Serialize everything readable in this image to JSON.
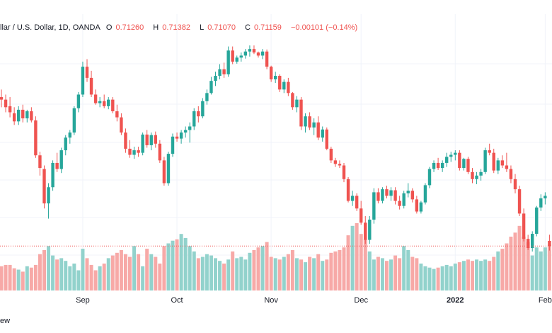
{
  "legend": {
    "symbol": "llar / U.S. Dollar, 1D, OANDA",
    "open_key": "O",
    "open_val": "0.71260",
    "high_key": "H",
    "high_val": "0.71382",
    "low_key": "L",
    "low_val": "0.71070",
    "close_key": "C",
    "close_val": "0.71159",
    "change_val": "−0.00101 (−0.14%)"
  },
  "footer": {
    "text": "ew"
  },
  "colors": {
    "up": "#26a69a",
    "down": "#ef5350",
    "up_volume": "#92d2cc",
    "down_volume": "#f7a9a7",
    "grid": "#f0f3fa",
    "price_line": "#ef5350"
  },
  "chart_data": {
    "type": "candlestick",
    "title": "llar / U.S. Dollar, 1D, OANDA",
    "last_close": 0.71159,
    "price_range": [
      0.7098,
      0.7515
    ],
    "x_tick_labels": [
      {
        "label": "Sep",
        "index": 19,
        "bold": false
      },
      {
        "label": "Oct",
        "index": 41,
        "bold": false
      },
      {
        "label": "Nov",
        "index": 63,
        "bold": false
      },
      {
        "label": "Dec",
        "index": 84,
        "bold": false
      },
      {
        "label": "2022",
        "index": 106,
        "bold": true
      },
      {
        "label": "Feb",
        "index": 127,
        "bold": false
      }
    ],
    "candles": [
      [
        0.741,
        0.7425,
        0.739,
        0.7405
      ],
      [
        0.7405,
        0.7415,
        0.738,
        0.739
      ],
      [
        0.7392,
        0.741,
        0.737,
        0.738
      ],
      [
        0.7378,
        0.739,
        0.7355,
        0.7362
      ],
      [
        0.7362,
        0.7392,
        0.7355,
        0.7385
      ],
      [
        0.7385,
        0.7395,
        0.736,
        0.7368
      ],
      [
        0.7368,
        0.7385,
        0.736,
        0.7382
      ],
      [
        0.7382,
        0.739,
        0.736,
        0.7364
      ],
      [
        0.7364,
        0.7372,
        0.729,
        0.7295
      ],
      [
        0.7295,
        0.7302,
        0.7255,
        0.727
      ],
      [
        0.7268,
        0.7275,
        0.719,
        0.72
      ],
      [
        0.72,
        0.724,
        0.717,
        0.7232
      ],
      [
        0.7232,
        0.7285,
        0.7225,
        0.728
      ],
      [
        0.728,
        0.73,
        0.7262,
        0.7268
      ],
      [
        0.7268,
        0.731,
        0.726,
        0.7305
      ],
      [
        0.7305,
        0.7335,
        0.7295,
        0.733
      ],
      [
        0.733,
        0.7345,
        0.7318,
        0.734
      ],
      [
        0.734,
        0.7392,
        0.7335,
        0.7388
      ],
      [
        0.7388,
        0.742,
        0.738,
        0.7415
      ],
      [
        0.7415,
        0.748,
        0.741,
        0.747
      ],
      [
        0.747,
        0.7485,
        0.744,
        0.7448
      ],
      [
        0.7448,
        0.7462,
        0.741,
        0.7415
      ],
      [
        0.7415,
        0.7425,
        0.7395,
        0.7398
      ],
      [
        0.7398,
        0.741,
        0.739,
        0.7402
      ],
      [
        0.7402,
        0.7415,
        0.7388,
        0.7392
      ],
      [
        0.7392,
        0.741,
        0.7386,
        0.7405
      ],
      [
        0.7405,
        0.741,
        0.7378,
        0.7382
      ],
      [
        0.7382,
        0.7395,
        0.7362,
        0.737
      ],
      [
        0.737,
        0.7378,
        0.7335,
        0.734
      ],
      [
        0.734,
        0.7348,
        0.73,
        0.7308
      ],
      [
        0.7308,
        0.7325,
        0.729,
        0.7296
      ],
      [
        0.7296,
        0.7312,
        0.7288,
        0.7305
      ],
      [
        0.7305,
        0.7312,
        0.7292,
        0.73
      ],
      [
        0.73,
        0.734,
        0.7295,
        0.7336
      ],
      [
        0.7336,
        0.7345,
        0.731,
        0.7315
      ],
      [
        0.7315,
        0.734,
        0.7305,
        0.7335
      ],
      [
        0.7335,
        0.7342,
        0.731,
        0.7318
      ],
      [
        0.7318,
        0.7325,
        0.728,
        0.7285
      ],
      [
        0.7285,
        0.7292,
        0.7235,
        0.724
      ],
      [
        0.724,
        0.7302,
        0.7235,
        0.7298
      ],
      [
        0.7298,
        0.7338,
        0.7292,
        0.7332
      ],
      [
        0.7332,
        0.734,
        0.7322,
        0.7328
      ],
      [
        0.7328,
        0.7345,
        0.7318,
        0.734
      ],
      [
        0.734,
        0.7352,
        0.733,
        0.7345
      ],
      [
        0.7345,
        0.736,
        0.732,
        0.7352
      ],
      [
        0.7352,
        0.7388,
        0.7345,
        0.7382
      ],
      [
        0.7382,
        0.7392,
        0.736,
        0.7372
      ],
      [
        0.7372,
        0.7408,
        0.7368,
        0.7402
      ],
      [
        0.7402,
        0.7425,
        0.7395,
        0.7418
      ],
      [
        0.7418,
        0.745,
        0.7415,
        0.7442
      ],
      [
        0.7442,
        0.746,
        0.7432,
        0.7452
      ],
      [
        0.7452,
        0.7475,
        0.7445,
        0.7465
      ],
      [
        0.7465,
        0.7478,
        0.7448,
        0.7455
      ],
      [
        0.7455,
        0.751,
        0.745,
        0.7502
      ],
      [
        0.7502,
        0.751,
        0.7475,
        0.748
      ],
      [
        0.748,
        0.7492,
        0.7476,
        0.7488
      ],
      [
        0.7488,
        0.7498,
        0.748,
        0.7492
      ],
      [
        0.7492,
        0.7505,
        0.7486,
        0.75
      ],
      [
        0.75,
        0.7512,
        0.749,
        0.7505
      ],
      [
        0.7505,
        0.7512,
        0.7495,
        0.7498
      ],
      [
        0.7498,
        0.75,
        0.7488,
        0.7492
      ],
      [
        0.7492,
        0.7505,
        0.7485,
        0.75
      ],
      [
        0.75,
        0.7504,
        0.7465,
        0.747
      ],
      [
        0.747,
        0.7472,
        0.744,
        0.7445
      ],
      [
        0.7445,
        0.746,
        0.7438,
        0.7452
      ],
      [
        0.7452,
        0.7455,
        0.742,
        0.7425
      ],
      [
        0.7425,
        0.7445,
        0.7418,
        0.744
      ],
      [
        0.744,
        0.7448,
        0.7412,
        0.7418
      ],
      [
        0.7418,
        0.742,
        0.7385,
        0.739
      ],
      [
        0.739,
        0.7412,
        0.738,
        0.7405
      ],
      [
        0.7405,
        0.741,
        0.7345,
        0.7352
      ],
      [
        0.7352,
        0.7378,
        0.734,
        0.7372
      ],
      [
        0.7372,
        0.738,
        0.7345,
        0.735
      ],
      [
        0.735,
        0.7368,
        0.7335,
        0.736
      ],
      [
        0.736,
        0.7372,
        0.7325,
        0.733
      ],
      [
        0.733,
        0.7352,
        0.7322,
        0.7346
      ],
      [
        0.7346,
        0.735,
        0.7305,
        0.7308
      ],
      [
        0.7308,
        0.7312,
        0.728,
        0.7285
      ],
      [
        0.7285,
        0.729,
        0.7272,
        0.7278
      ],
      [
        0.7278,
        0.7285,
        0.727,
        0.7275
      ],
      [
        0.7275,
        0.728,
        0.7242,
        0.7248
      ],
      [
        0.7248,
        0.7252,
        0.7202,
        0.7205
      ],
      [
        0.7205,
        0.7225,
        0.7195,
        0.7215
      ],
      [
        0.7215,
        0.722,
        0.7185,
        0.719
      ],
      [
        0.719,
        0.7205,
        0.7158,
        0.7162
      ],
      [
        0.7162,
        0.7175,
        0.712,
        0.7128
      ],
      [
        0.7128,
        0.7175,
        0.712,
        0.7168
      ],
      [
        0.7168,
        0.723,
        0.716,
        0.7222
      ],
      [
        0.7222,
        0.723,
        0.72,
        0.7205
      ],
      [
        0.7205,
        0.7232,
        0.72,
        0.7228
      ],
      [
        0.7228,
        0.7235,
        0.721,
        0.7215
      ],
      [
        0.7215,
        0.7232,
        0.7205,
        0.7226
      ],
      [
        0.7226,
        0.7232,
        0.7198,
        0.7205
      ],
      [
        0.7205,
        0.7215,
        0.7188,
        0.7195
      ],
      [
        0.7195,
        0.7225,
        0.719,
        0.722
      ],
      [
        0.722,
        0.724,
        0.7212,
        0.7225
      ],
      [
        0.7225,
        0.723,
        0.7202,
        0.7208
      ],
      [
        0.7208,
        0.7215,
        0.718,
        0.7184
      ],
      [
        0.7184,
        0.7205,
        0.718,
        0.7202
      ],
      [
        0.7202,
        0.724,
        0.7198,
        0.7236
      ],
      [
        0.7236,
        0.7272,
        0.723,
        0.7268
      ],
      [
        0.7268,
        0.7285,
        0.7262,
        0.728
      ],
      [
        0.728,
        0.729,
        0.7266,
        0.727
      ],
      [
        0.727,
        0.7285,
        0.7262,
        0.728
      ],
      [
        0.728,
        0.73,
        0.7272,
        0.7292
      ],
      [
        0.7292,
        0.7302,
        0.7282,
        0.7296
      ],
      [
        0.7296,
        0.7305,
        0.7285,
        0.73
      ],
      [
        0.73,
        0.7305,
        0.7265,
        0.727
      ],
      [
        0.727,
        0.729,
        0.7265,
        0.7288
      ],
      [
        0.7288,
        0.7292,
        0.7258,
        0.7262
      ],
      [
        0.7262,
        0.727,
        0.724,
        0.7248
      ],
      [
        0.7248,
        0.7262,
        0.7238,
        0.7255
      ],
      [
        0.7255,
        0.7268,
        0.7245,
        0.7262
      ],
      [
        0.7262,
        0.731,
        0.7258,
        0.7305
      ],
      [
        0.7305,
        0.7318,
        0.7295,
        0.73
      ],
      [
        0.73,
        0.7308,
        0.726,
        0.7265
      ],
      [
        0.7265,
        0.729,
        0.7258,
        0.7285
      ],
      [
        0.7285,
        0.7295,
        0.727,
        0.7275
      ],
      [
        0.7275,
        0.73,
        0.7262,
        0.7268
      ],
      [
        0.7268,
        0.7275,
        0.724,
        0.7248
      ],
      [
        0.7248,
        0.7258,
        0.722,
        0.7228
      ],
      [
        0.7228,
        0.7235,
        0.7175,
        0.718
      ],
      [
        0.718,
        0.719,
        0.7125,
        0.713
      ],
      [
        0.713,
        0.7138,
        0.7108,
        0.7112
      ],
      [
        0.7112,
        0.7145,
        0.7105,
        0.714
      ],
      [
        0.714,
        0.7195,
        0.7135,
        0.7192
      ],
      [
        0.7192,
        0.7218,
        0.7185,
        0.721
      ],
      [
        0.721,
        0.7222,
        0.7198,
        0.7215
      ],
      [
        0.7126,
        0.71382,
        0.7107,
        0.71159
      ]
    ],
    "volumes": [
      0.36,
      0.38,
      0.38,
      0.33,
      0.31,
      0.28,
      0.36,
      0.34,
      0.38,
      0.54,
      0.6,
      0.66,
      0.52,
      0.46,
      0.48,
      0.44,
      0.36,
      0.4,
      0.3,
      0.62,
      0.48,
      0.38,
      0.3,
      0.36,
      0.4,
      0.48,
      0.52,
      0.56,
      0.6,
      0.54,
      0.5,
      0.66,
      0.54,
      0.36,
      0.62,
      0.54,
      0.5,
      0.4,
      0.66,
      0.7,
      0.74,
      0.76,
      0.84,
      0.78,
      0.66,
      0.58,
      0.48,
      0.5,
      0.54,
      0.52,
      0.48,
      0.44,
      0.4,
      0.46,
      0.58,
      0.48,
      0.5,
      0.46,
      0.56,
      0.6,
      0.64,
      0.66,
      0.72,
      0.5,
      0.48,
      0.46,
      0.5,
      0.54,
      0.6,
      0.48,
      0.46,
      0.42,
      0.5,
      0.48,
      0.54,
      0.44,
      0.46,
      0.56,
      0.58,
      0.6,
      0.64,
      0.82,
      0.96,
      1.0,
      0.84,
      0.76,
      0.58,
      0.46,
      0.5,
      0.48,
      0.44,
      0.46,
      0.52,
      0.48,
      0.66,
      0.6,
      0.5,
      0.48,
      0.4,
      0.36,
      0.34,
      0.32,
      0.34,
      0.36,
      0.38,
      0.36,
      0.4,
      0.42,
      0.44,
      0.46,
      0.44,
      0.46,
      0.44,
      0.46,
      0.44,
      0.5,
      0.58,
      0.62,
      0.7,
      0.8,
      0.86,
      0.96,
      0.8,
      0.72,
      0.52,
      0.64,
      0.58,
      0.64,
      0.68
    ]
  }
}
